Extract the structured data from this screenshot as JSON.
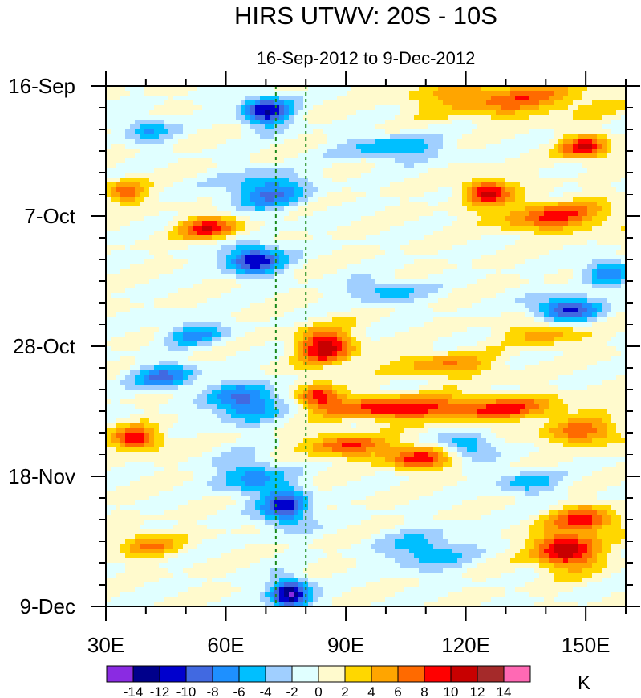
{
  "chart_data": {
    "type": "heatmap",
    "title": "HIRS UTWV: 20S - 10S",
    "subtitle": "16-Sep-2012 to 9-Dec-2012",
    "x_range": [
      30,
      160
    ],
    "x_ticks": [
      {
        "value": 30,
        "label": "30E"
      },
      {
        "value": 60,
        "label": "60E"
      },
      {
        "value": 90,
        "label": "90E"
      },
      {
        "value": 120,
        "label": "120E"
      },
      {
        "value": 150,
        "label": "150E"
      }
    ],
    "y_range_days": [
      0,
      84
    ],
    "y_ticks": [
      {
        "day": 0,
        "label": "16-Sep"
      },
      {
        "day": 21,
        "label": "7-Oct"
      },
      {
        "day": 42,
        "label": "28-Oct"
      },
      {
        "day": 63,
        "label": "18-Nov"
      },
      {
        "day": 84,
        "label": "9-Dec"
      }
    ],
    "reference_lines_lon": [
      72.5,
      80
    ],
    "colorbar": {
      "unit": "K",
      "levels": [
        -14,
        -12,
        -10,
        -8,
        -6,
        -4,
        -2,
        0,
        2,
        4,
        6,
        8,
        10,
        12,
        14
      ],
      "labels": [
        "-14",
        "-12",
        "-10",
        "-8",
        "-6",
        "-4",
        "-2",
        "0",
        "2",
        "4",
        "6",
        "8",
        "10",
        "12",
        "14"
      ],
      "colors": [
        "#8a2be2",
        "#00008b",
        "#0000cd",
        "#4169e1",
        "#1e90ff",
        "#00bfff",
        "#a0cfff",
        "#e0ffff",
        "#fffacd",
        "#ffd700",
        "#ffa500",
        "#ff6a00",
        "#ff0000",
        "#c80000",
        "#a52a2a",
        "#ff69b4"
      ]
    },
    "features": [
      {
        "lon": 70,
        "day": 4,
        "value": -12,
        "slon": 6,
        "sday": 2.5
      },
      {
        "lon": 70,
        "day": 17,
        "value": -8,
        "slon": 10,
        "sday": 3
      },
      {
        "lon": 67,
        "day": 28,
        "value": -12,
        "slon": 7,
        "sday": 2.5
      },
      {
        "lon": 56,
        "day": 23,
        "value": 9,
        "slon": 8,
        "sday": 2
      },
      {
        "lon": 125,
        "day": 17,
        "value": 10,
        "slon": 6,
        "sday": 2
      },
      {
        "lon": 142,
        "day": 21,
        "value": 8,
        "slon": 15,
        "sday": 2.5
      },
      {
        "lon": 150,
        "day": 10,
        "value": 10,
        "slon": 6,
        "sday": 2
      },
      {
        "lon": 130,
        "day": 2,
        "value": 7,
        "slon": 22,
        "sday": 3
      },
      {
        "lon": 85,
        "day": 42,
        "value": 11,
        "slon": 7,
        "sday": 3
      },
      {
        "lon": 83,
        "day": 50,
        "value": 9,
        "slon": 5,
        "sday": 2
      },
      {
        "lon": 100,
        "day": 52,
        "value": 9,
        "slon": 15,
        "sday": 2
      },
      {
        "lon": 128,
        "day": 52,
        "value": 8,
        "slon": 18,
        "sday": 2
      },
      {
        "lon": 38,
        "day": 57,
        "value": 10,
        "slon": 6,
        "sday": 2
      },
      {
        "lon": 90,
        "day": 58,
        "value": 8,
        "slon": 10,
        "sday": 2
      },
      {
        "lon": 108,
        "day": 60,
        "value": 9,
        "slon": 8,
        "sday": 2
      },
      {
        "lon": 150,
        "day": 56,
        "value": 7,
        "slon": 10,
        "sday": 2
      },
      {
        "lon": 145,
        "day": 75,
        "value": 12,
        "slon": 8,
        "sday": 3
      },
      {
        "lon": 150,
        "day": 70,
        "value": 9,
        "slon": 8,
        "sday": 2
      },
      {
        "lon": 65,
        "day": 51,
        "value": -10,
        "slon": 8,
        "sday": 3
      },
      {
        "lon": 45,
        "day": 47,
        "value": -8,
        "slon": 8,
        "sday": 2
      },
      {
        "lon": 75,
        "day": 68,
        "value": -11,
        "slon": 6,
        "sday": 3
      },
      {
        "lon": 76,
        "day": 82,
        "value": -14,
        "slon": 5,
        "sday": 2.5
      },
      {
        "lon": 66,
        "day": 63,
        "value": -7,
        "slon": 8,
        "sday": 3
      },
      {
        "lon": 145,
        "day": 36,
        "value": -11,
        "slon": 8,
        "sday": 2
      },
      {
        "lon": 102,
        "day": 10,
        "value": -6,
        "slon": 12,
        "sday": 2
      },
      {
        "lon": 120,
        "day": 58,
        "value": -7,
        "slon": 6,
        "sday": 2
      },
      {
        "lon": 110,
        "day": 75,
        "value": -6,
        "slon": 10,
        "sday": 3
      },
      {
        "lon": 40,
        "day": 7,
        "value": -6,
        "slon": 6,
        "sday": 2
      },
      {
        "lon": 52,
        "day": 40,
        "value": -6,
        "slon": 8,
        "sday": 2
      },
      {
        "lon": 100,
        "day": 33,
        "value": -5,
        "slon": 10,
        "sday": 2
      },
      {
        "lon": 135,
        "day": 64,
        "value": -5,
        "slon": 8,
        "sday": 2
      },
      {
        "lon": 155,
        "day": 30,
        "value": -8,
        "slon": 6,
        "sday": 2
      },
      {
        "lon": 40,
        "day": 74,
        "value": 6,
        "slon": 8,
        "sday": 2
      },
      {
        "lon": 115,
        "day": 45,
        "value": 6,
        "slon": 12,
        "sday": 2
      },
      {
        "lon": 140,
        "day": 40,
        "value": 5,
        "slon": 10,
        "sday": 2
      },
      {
        "lon": 35,
        "day": 17,
        "value": 7,
        "slon": 5,
        "sday": 2
      }
    ]
  }
}
